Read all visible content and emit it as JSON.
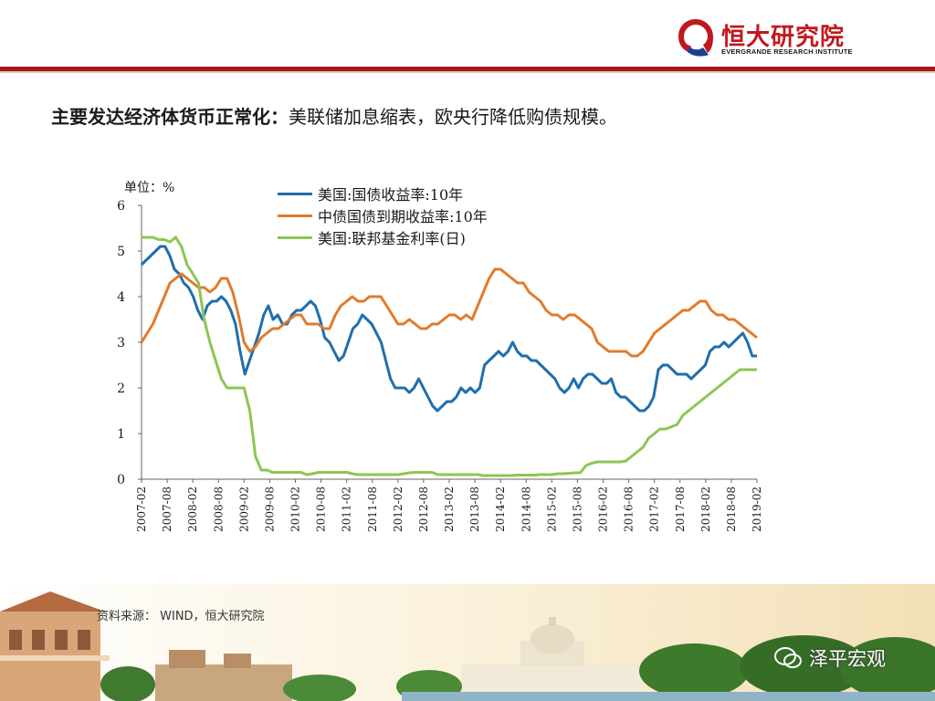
{
  "header": {
    "brand_name": "恒大研究院",
    "brand_sub": "EVERGRANDE RESEARCH INSTITUTE",
    "brand_color": "#c0181e"
  },
  "headline": {
    "bold": "主要发达经济体货币正常化：",
    "text": "美联储加息缩表，欧央行降低购债规模。"
  },
  "footer": {
    "source": "资料来源： WIND，恒大研究院",
    "watermark": "泽平宏观"
  },
  "chart_data": {
    "type": "line",
    "unit_label": "单位：%",
    "ylim": [
      0,
      6
    ],
    "y_ticks": [
      "0",
      "1",
      "2",
      "3",
      "4",
      "5",
      "6"
    ],
    "x_ticks": [
      "2007-02",
      "2007-08",
      "2008-02",
      "2008-08",
      "2009-02",
      "2009-08",
      "2010-02",
      "2010-08",
      "2011-02",
      "2011-08",
      "2012-02",
      "2012-08",
      "2013-02",
      "2013-08",
      "2014-02",
      "2014-08",
      "2015-02",
      "2015-08",
      "2016-02",
      "2016-08",
      "2017-02",
      "2017-08",
      "2018-02",
      "2018-08",
      "2019-02"
    ],
    "series": [
      {
        "name": "美国:国债收益率:10年",
        "color": "#1f6fad",
        "values": [
          4.7,
          4.8,
          4.9,
          5.0,
          5.1,
          5.1,
          4.9,
          4.6,
          4.5,
          4.3,
          4.2,
          4.0,
          3.7,
          3.5,
          3.8,
          3.9,
          3.9,
          4.0,
          3.9,
          3.7,
          3.4,
          2.8,
          2.3,
          2.6,
          2.9,
          3.2,
          3.6,
          3.8,
          3.5,
          3.6,
          3.4,
          3.4,
          3.6,
          3.7,
          3.7,
          3.8,
          3.9,
          3.8,
          3.5,
          3.1,
          3.0,
          2.8,
          2.6,
          2.7,
          3.0,
          3.3,
          3.4,
          3.6,
          3.5,
          3.4,
          3.2,
          3.0,
          2.6,
          2.2,
          2.0,
          2.0,
          2.0,
          1.9,
          2.0,
          2.2,
          2.0,
          1.8,
          1.6,
          1.5,
          1.6,
          1.7,
          1.7,
          1.8,
          2.0,
          1.9,
          2.0,
          1.9,
          2.0,
          2.5,
          2.6,
          2.7,
          2.8,
          2.7,
          2.8,
          3.0,
          2.8,
          2.7,
          2.7,
          2.6,
          2.6,
          2.5,
          2.4,
          2.3,
          2.2,
          2.0,
          1.9,
          2.0,
          2.2,
          2.0,
          2.2,
          2.3,
          2.3,
          2.2,
          2.1,
          2.1,
          2.2,
          1.9,
          1.8,
          1.8,
          1.7,
          1.6,
          1.5,
          1.5,
          1.6,
          1.8,
          2.4,
          2.5,
          2.5,
          2.4,
          2.3,
          2.3,
          2.3,
          2.2,
          2.3,
          2.4,
          2.5,
          2.8,
          2.9,
          2.9,
          3.0,
          2.9,
          3.0,
          3.1,
          3.2,
          3.0,
          2.7,
          2.7
        ]
      },
      {
        "name": "中债国债到期收益率:10年",
        "color": "#e07b2c",
        "values": [
          3.0,
          3.2,
          3.4,
          3.7,
          4.0,
          4.3,
          4.4,
          4.5,
          4.4,
          4.3,
          4.2,
          4.2,
          4.1,
          4.2,
          4.4,
          4.4,
          4.1,
          3.6,
          3.0,
          2.8,
          2.9,
          3.1,
          3.2,
          3.3,
          3.3,
          3.4,
          3.5,
          3.6,
          3.6,
          3.4,
          3.4,
          3.4,
          3.3,
          3.3,
          3.6,
          3.8,
          3.9,
          4.0,
          3.9,
          3.9,
          4.0,
          4.0,
          4.0,
          3.8,
          3.6,
          3.4,
          3.4,
          3.5,
          3.4,
          3.3,
          3.3,
          3.4,
          3.4,
          3.5,
          3.6,
          3.6,
          3.5,
          3.6,
          3.5,
          3.8,
          4.1,
          4.4,
          4.6,
          4.6,
          4.5,
          4.4,
          4.3,
          4.3,
          4.1,
          4.0,
          3.9,
          3.7,
          3.6,
          3.6,
          3.5,
          3.6,
          3.6,
          3.5,
          3.4,
          3.3,
          3.0,
          2.9,
          2.8,
          2.8,
          2.8,
          2.8,
          2.7,
          2.7,
          2.8,
          3.0,
          3.2,
          3.3,
          3.4,
          3.5,
          3.6,
          3.7,
          3.7,
          3.8,
          3.9,
          3.9,
          3.7,
          3.6,
          3.6,
          3.5,
          3.5,
          3.4,
          3.3,
          3.2,
          3.1
        ]
      },
      {
        "name": "美国:联邦基金利率(日)",
        "color": "#8cc653",
        "values": [
          5.3,
          5.3,
          5.3,
          5.25,
          5.25,
          5.2,
          5.3,
          5.1,
          4.7,
          4.5,
          4.3,
          3.5,
          3.0,
          2.6,
          2.2,
          2.0,
          2.0,
          2.0,
          2.0,
          1.5,
          0.5,
          0.2,
          0.2,
          0.15,
          0.15,
          0.15,
          0.15,
          0.15,
          0.15,
          0.1,
          0.12,
          0.15,
          0.15,
          0.15,
          0.15,
          0.15,
          0.15,
          0.12,
          0.1,
          0.1,
          0.1,
          0.1,
          0.1,
          0.1,
          0.1,
          0.1,
          0.12,
          0.14,
          0.15,
          0.15,
          0.15,
          0.15,
          0.1,
          0.1,
          0.1,
          0.1,
          0.1,
          0.1,
          0.1,
          0.1,
          0.08,
          0.08,
          0.08,
          0.08,
          0.08,
          0.08,
          0.09,
          0.09,
          0.09,
          0.09,
          0.1,
          0.1,
          0.1,
          0.12,
          0.12,
          0.13,
          0.14,
          0.14,
          0.3,
          0.35,
          0.38,
          0.38,
          0.38,
          0.38,
          0.38,
          0.4,
          0.5,
          0.6,
          0.7,
          0.9,
          1.0,
          1.1,
          1.1,
          1.15,
          1.2,
          1.4,
          1.5,
          1.6,
          1.7,
          1.8,
          1.9,
          2.0,
          2.1,
          2.2,
          2.3,
          2.4,
          2.4,
          2.4,
          2.4
        ]
      }
    ]
  }
}
